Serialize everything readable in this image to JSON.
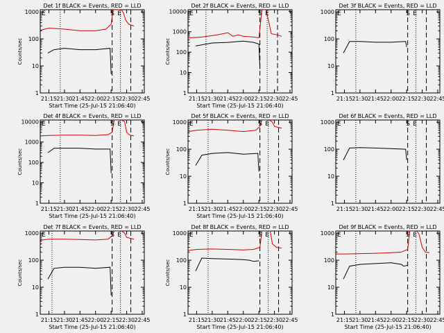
{
  "chart_data": [
    {
      "type": "line",
      "title": "Det 1f BLACK = Events, RED = LLD",
      "xlabel": "Start Time (25-Jul-15 21:06:40)",
      "ylabel": "Counts/sec",
      "x_ticks": [
        "21:15",
        "21:30",
        "21:45",
        "22:00",
        "22:15",
        "22:30",
        "22:45"
      ],
      "y_ticks": [
        "1",
        "10",
        "100",
        "1000"
      ],
      "ylim": [
        1,
        1200
      ],
      "yscale": "log",
      "xlim": [
        "21:06:40",
        "22:47:00"
      ],
      "dotted_lines": [
        "21:26",
        "22:24"
      ],
      "dashed_lines": [
        "22:16",
        "22:34"
      ],
      "markers": [
        "S",
        "E"
      ],
      "marker_time": "22:21",
      "series": [
        {
          "color": "#000000",
          "x": [
            "21:14",
            "21:20",
            "21:30",
            "21:45",
            "22:00",
            "22:14",
            "22:15"
          ],
          "values": [
            30,
            40,
            45,
            40,
            40,
            45,
            5
          ]
        },
        {
          "color": "#d00000",
          "x": [
            "21:07",
            "21:15",
            "21:30",
            "21:45",
            "22:00",
            "22:10",
            "22:15",
            "22:17",
            "22:25",
            "22:27",
            "22:29",
            "22:32",
            "22:37"
          ],
          "values": [
            210,
            250,
            230,
            200,
            200,
            230,
            350,
            1200,
            1200,
            900,
            500,
            350,
            300
          ]
        }
      ]
    },
    {
      "type": "line",
      "title": "Det 2f BLACK = Events, RED = LLD",
      "xlabel": "Start Time (25-Jul-15 21:06:40)",
      "ylabel": "Counts/sec",
      "x_ticks": [
        "21:15",
        "21:30",
        "21:45",
        "22:00",
        "22:15",
        "22:30",
        "22:45"
      ],
      "y_ticks": [
        "1",
        "10",
        "100",
        "1000",
        "10000"
      ],
      "ylim": [
        1,
        12000
      ],
      "yscale": "log",
      "xlim": [
        "21:06:40",
        "22:47:00"
      ],
      "dotted_lines": [
        "21:24",
        "22:23"
      ],
      "dashed_lines": [
        "22:16",
        "22:33"
      ],
      "markers": [
        "S",
        "E"
      ],
      "marker_time": "22:21",
      "series": [
        {
          "color": "#000000",
          "x": [
            "21:14",
            "21:30",
            "21:45",
            "22:00",
            "22:10",
            "22:15",
            "22:16"
          ],
          "values": [
            200,
            280,
            300,
            350,
            300,
            250,
            15
          ]
        },
        {
          "color": "#d00000",
          "x": [
            "21:07",
            "21:20",
            "21:35",
            "21:45",
            "21:50",
            "21:55",
            "22:00",
            "22:10",
            "22:15",
            "22:18",
            "22:22",
            "22:27",
            "22:33",
            "22:37"
          ],
          "values": [
            500,
            550,
            700,
            900,
            600,
            700,
            600,
            550,
            500,
            12000,
            12000,
            800,
            700,
            600
          ]
        }
      ]
    },
    {
      "type": "line",
      "title": "Det 3f BLACK = Events, RED = LLD",
      "xlabel": "",
      "ylabel": "",
      "x_ticks": [
        "21:15",
        "21:30",
        "21:45",
        "22:00",
        "22:15",
        "22:30",
        "22:45"
      ],
      "y_ticks": [
        "1",
        "10",
        "100",
        "1000"
      ],
      "ylim": [
        1,
        1200
      ],
      "yscale": "log",
      "xlim": [
        "21:06:40",
        "22:47:00"
      ],
      "dotted_lines": [
        "21:26",
        "22:24"
      ],
      "dashed_lines": [
        "22:16",
        "22:34"
      ],
      "markers": [
        "S",
        "E"
      ],
      "marker_time": "22:21",
      "series": [
        {
          "color": "#000000",
          "x": [
            "21:14",
            "21:20",
            "21:30",
            "21:45",
            "22:00",
            "22:14",
            "22:15"
          ],
          "values": [
            30,
            80,
            80,
            75,
            75,
            80,
            50
          ]
        }
      ]
    },
    {
      "type": "line",
      "title": "Det 4f BLACK = Events, RED = LLD",
      "xlabel": "Start Time (25-Jul-15 21:06:40)",
      "ylabel": "Counts/sec",
      "x_ticks": [
        "21:15",
        "21:30",
        "21:45",
        "22:00",
        "22:15",
        "22:30",
        "22:45"
      ],
      "y_ticks": [
        "1",
        "10",
        "100",
        "1000",
        "10000"
      ],
      "ylim": [
        1,
        12000
      ],
      "yscale": "log",
      "xlim": [
        "21:06:40",
        "22:47:00"
      ],
      "dotted_lines": [
        "21:26",
        "22:24"
      ],
      "dashed_lines": [
        "22:16",
        "22:34"
      ],
      "markers": [
        "S",
        "E"
      ],
      "marker_time": "22:21",
      "series": [
        {
          "color": "#000000",
          "x": [
            "21:14",
            "21:20",
            "21:30",
            "21:45",
            "22:00",
            "22:14",
            "22:15"
          ],
          "values": [
            300,
            500,
            500,
            500,
            450,
            450,
            30
          ]
        },
        {
          "color": "#d00000",
          "x": [
            "21:07",
            "21:15",
            "21:30",
            "21:45",
            "22:00",
            "22:12",
            "22:16",
            "22:18",
            "22:25",
            "22:28",
            "22:30",
            "22:33",
            "22:37"
          ],
          "values": [
            2000,
            2100,
            2200,
            2200,
            2100,
            2300,
            3000,
            12000,
            12000,
            10000,
            3000,
            2200,
            2000
          ]
        }
      ]
    },
    {
      "type": "line",
      "title": "Det 5f BLACK = Events, RED = LLD",
      "xlabel": "Start Time (25-Jul-15 21:06:40)",
      "ylabel": "Counts/sec",
      "x_ticks": [
        "21:15",
        "21:30",
        "21:45",
        "22:00",
        "22:15",
        "22:30",
        "22:45"
      ],
      "y_ticks": [
        "1",
        "10",
        "100",
        "1000"
      ],
      "ylim": [
        1,
        1200
      ],
      "yscale": "log",
      "xlim": [
        "21:06:40",
        "22:47:00"
      ],
      "dotted_lines": [
        "21:26",
        "22:24"
      ],
      "dashed_lines": [
        "22:16",
        "22:34"
      ],
      "markers": [
        "S",
        "E"
      ],
      "marker_time": "22:21",
      "series": [
        {
          "color": "#000000",
          "x": [
            "21:14",
            "21:20",
            "21:30",
            "21:45",
            "22:00",
            "22:14",
            "22:15"
          ],
          "values": [
            25,
            60,
            70,
            75,
            65,
            70,
            15
          ]
        },
        {
          "color": "#d00000",
          "x": [
            "21:07",
            "21:15",
            "21:30",
            "21:45",
            "22:00",
            "22:12",
            "22:16",
            "22:18",
            "22:25",
            "22:28",
            "22:30",
            "22:33",
            "22:37"
          ],
          "values": [
            450,
            500,
            550,
            500,
            450,
            500,
            700,
            1200,
            1200,
            1000,
            700,
            650,
            600
          ]
        }
      ]
    },
    {
      "type": "line",
      "title": "Det 6f BLACK = Events, RED = LLD",
      "xlabel": "",
      "ylabel": "",
      "x_ticks": [
        "21:15",
        "21:30",
        "21:45",
        "22:00",
        "22:15",
        "22:30",
        "22:45"
      ],
      "y_ticks": [
        "1",
        "10",
        "100",
        "1000"
      ],
      "ylim": [
        1,
        1200
      ],
      "yscale": "log",
      "xlim": [
        "21:06:40",
        "22:47:00"
      ],
      "dotted_lines": [
        "21:26",
        "22:24"
      ],
      "dashed_lines": [
        "22:16",
        "22:34"
      ],
      "markers": [
        "S",
        "E"
      ],
      "marker_time": "22:21",
      "series": [
        {
          "color": "#000000",
          "x": [
            "21:14",
            "21:20",
            "21:30",
            "21:45",
            "22:00",
            "22:14",
            "22:15"
          ],
          "values": [
            40,
            110,
            115,
            110,
            105,
            100,
            40
          ]
        }
      ]
    },
    {
      "type": "line",
      "title": "Det 7f BLACK = Events, RED = LLD",
      "xlabel": "Start Time (25-Jul-15 21:06:40)",
      "ylabel": "Counts/sec",
      "x_ticks": [
        "21:15",
        "21:30",
        "21:45",
        "22:00",
        "22:15",
        "22:30",
        "22:45"
      ],
      "y_ticks": [
        "1",
        "10",
        "100",
        "1000"
      ],
      "ylim": [
        1,
        1200
      ],
      "yscale": "log",
      "xlim": [
        "21:06:40",
        "22:47:00"
      ],
      "dotted_lines": [
        "21:18",
        "22:24"
      ],
      "dashed_lines": [
        "22:16",
        "22:34"
      ],
      "markers": [
        "S",
        "E"
      ],
      "marker_time": "22:21",
      "series": [
        {
          "color": "#000000",
          "x": [
            "21:14",
            "21:20",
            "21:30",
            "21:45",
            "22:00",
            "22:14",
            "22:15"
          ],
          "values": [
            20,
            50,
            55,
            55,
            50,
            55,
            5
          ]
        },
        {
          "color": "#d00000",
          "x": [
            "21:07",
            "21:15",
            "21:30",
            "21:45",
            "22:00",
            "22:12",
            "22:16",
            "22:18",
            "22:25",
            "22:28",
            "22:30",
            "22:33",
            "22:37"
          ],
          "values": [
            550,
            600,
            600,
            580,
            560,
            600,
            800,
            1200,
            1200,
            1000,
            700,
            650,
            600
          ]
        }
      ]
    },
    {
      "type": "line",
      "title": "Det 8f BLACK = Events, RED = LLD",
      "xlabel": "Start Time (25-Jul-15 21:06:40)",
      "ylabel": "Counts/sec",
      "x_ticks": [
        "21:15",
        "21:30",
        "21:45",
        "22:00",
        "22:15",
        "22:30",
        "22:45"
      ],
      "y_ticks": [
        "1",
        "10",
        "100",
        "1000"
      ],
      "ylim": [
        1,
        1200
      ],
      "yscale": "log",
      "xlim": [
        "21:06:40",
        "22:47:00"
      ],
      "dotted_lines": [
        "21:26",
        "22:24"
      ],
      "dashed_lines": [
        "22:16",
        "22:34"
      ],
      "markers": [
        "S",
        "E"
      ],
      "marker_time": "22:21",
      "series": [
        {
          "color": "#000000",
          "x": [
            "21:14",
            "21:20",
            "21:30",
            "21:45",
            "22:00",
            "22:06",
            "22:10",
            "22:15"
          ],
          "values": [
            40,
            120,
            115,
            110,
            105,
            100,
            90,
            95
          ]
        },
        {
          "color": "#d00000",
          "x": [
            "21:07",
            "21:15",
            "21:30",
            "21:45",
            "22:00",
            "22:10",
            "22:16",
            "22:18",
            "22:26",
            "22:28",
            "22:32",
            "22:37"
          ],
          "values": [
            230,
            250,
            260,
            250,
            240,
            250,
            300,
            1200,
            1200,
            400,
            300,
            280
          ]
        }
      ]
    },
    {
      "type": "line",
      "title": "Det 9f BLACK = Events, RED = LLD",
      "xlabel": "Start Time (25-Jul-15 21:06:40)",
      "ylabel": "",
      "x_ticks": [
        "21:15",
        "21:30",
        "21:45",
        "22:00",
        "22:15",
        "22:30",
        "22:45"
      ],
      "y_ticks": [
        "1",
        "10",
        "100",
        "1000"
      ],
      "ylim": [
        1,
        1200
      ],
      "yscale": "log",
      "xlim": [
        "21:06:40",
        "22:47:00"
      ],
      "dotted_lines": [
        "21:26",
        "22:24"
      ],
      "dashed_lines": [
        "22:16",
        "22:34"
      ],
      "markers": [
        "S",
        "E"
      ],
      "marker_time": "22:21",
      "series": [
        {
          "color": "#000000",
          "x": [
            "21:14",
            "21:20",
            "21:30",
            "21:45",
            "22:00",
            "22:10",
            "22:12",
            "22:16"
          ],
          "values": [
            20,
            60,
            70,
            75,
            80,
            70,
            60,
            65
          ]
        },
        {
          "color": "#d00000",
          "x": [
            "21:07",
            "21:15",
            "21:30",
            "21:45",
            "22:00",
            "22:10",
            "22:16",
            "22:18",
            "22:25",
            "22:27",
            "22:30",
            "22:33",
            "22:37"
          ],
          "values": [
            170,
            170,
            175,
            180,
            190,
            200,
            250,
            1200,
            1200,
            900,
            300,
            200,
            190
          ]
        }
      ]
    }
  ]
}
